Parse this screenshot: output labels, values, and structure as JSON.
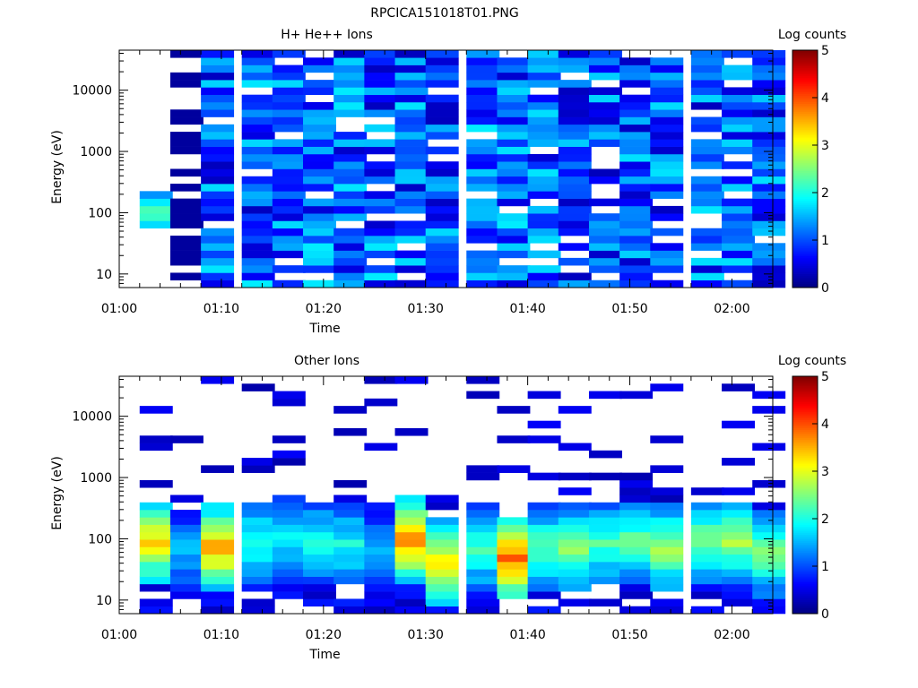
{
  "page_title": "RPCICA151018T01.PNG",
  "colormap": [
    "#00007f",
    "#0000ff",
    "#007fff",
    "#00ffff",
    "#7fff7f",
    "#ffff00",
    "#ff7f00",
    "#ff0000",
    "#7f0000"
  ],
  "chart_data": [
    {
      "type": "heatmap",
      "title": "H+ He++ Ions",
      "xlabel": "Time",
      "ylabel": "Energy (eV)",
      "yscale": "log",
      "ylim": [
        6,
        45000
      ],
      "xlim_minutes": [
        0,
        64
      ],
      "xticks": [
        "01:00",
        "01:10",
        "01:20",
        "01:30",
        "01:40",
        "01:50",
        "02:00"
      ],
      "yticks": [
        "10",
        "100",
        "1000",
        "10000"
      ],
      "colorbar": {
        "label": "Log counts",
        "range": [
          0,
          5
        ],
        "ticks": [
          "0",
          "1",
          "2",
          "3",
          "4",
          "5"
        ]
      },
      "time_bins_start": [
        "01:02",
        "01:05",
        "01:08",
        "01:12",
        "01:15",
        "01:18",
        "01:21",
        "01:24",
        "01:27",
        "01:30",
        "01:34",
        "01:37",
        "01:40",
        "01:43",
        "01:46",
        "01:49",
        "01:52",
        "01:56",
        "01:59",
        "02:02"
      ],
      "bin_width_minutes": 3.2,
      "energy_range_eV": [
        6,
        45000
      ],
      "typical_log_counts": {
        "01:02": {
          "emin": 60,
          "emax": 200,
          "peak": 2.5
        },
        "01:05": {
          "emin": 9,
          "emax": 45000,
          "peak": 0.3
        },
        "01:08-02:03": {
          "emin": 6,
          "emax": 45000,
          "level_range": [
            0.2,
            1.9
          ]
        }
      }
    },
    {
      "type": "heatmap",
      "title": "Other Ions",
      "xlabel": "Time",
      "ylabel": "Energy (eV)",
      "yscale": "log",
      "ylim": [
        6,
        45000
      ],
      "xlim_minutes": [
        0,
        64
      ],
      "xticks": [
        "01:00",
        "01:10",
        "01:20",
        "01:30",
        "01:40",
        "01:50",
        "02:00"
      ],
      "yticks": [
        "10",
        "100",
        "1000",
        "10000"
      ],
      "colorbar": {
        "label": "Log counts",
        "range": [
          0,
          5
        ],
        "ticks": [
          "0",
          "1",
          "2",
          "3",
          "4",
          "5"
        ]
      },
      "time_bins_start": [
        "01:02",
        "01:05",
        "01:08",
        "01:12",
        "01:15",
        "01:18",
        "01:21",
        "01:24",
        "01:27",
        "01:30",
        "01:34",
        "01:37",
        "01:40",
        "01:43",
        "01:46",
        "01:49",
        "01:52",
        "01:56",
        "01:59",
        "02:02"
      ],
      "bin_width_minutes": 3.2,
      "peak_log_counts_per_bin": [
        3.3,
        1.6,
        3.6,
        2.2,
        2.0,
        2.0,
        2.0,
        1.5,
        3.8,
        3.3,
        2.3,
        3.9,
        2.4,
        2.6,
        2.3,
        2.4,
        2.8,
        2.6,
        2.7,
        2.6
      ],
      "peak_energy_eV_per_bin": [
        90,
        60,
        70,
        90,
        100,
        90,
        80,
        70,
        100,
        40,
        70,
        50,
        70,
        70,
        80,
        90,
        70,
        90,
        90,
        60
      ]
    }
  ]
}
